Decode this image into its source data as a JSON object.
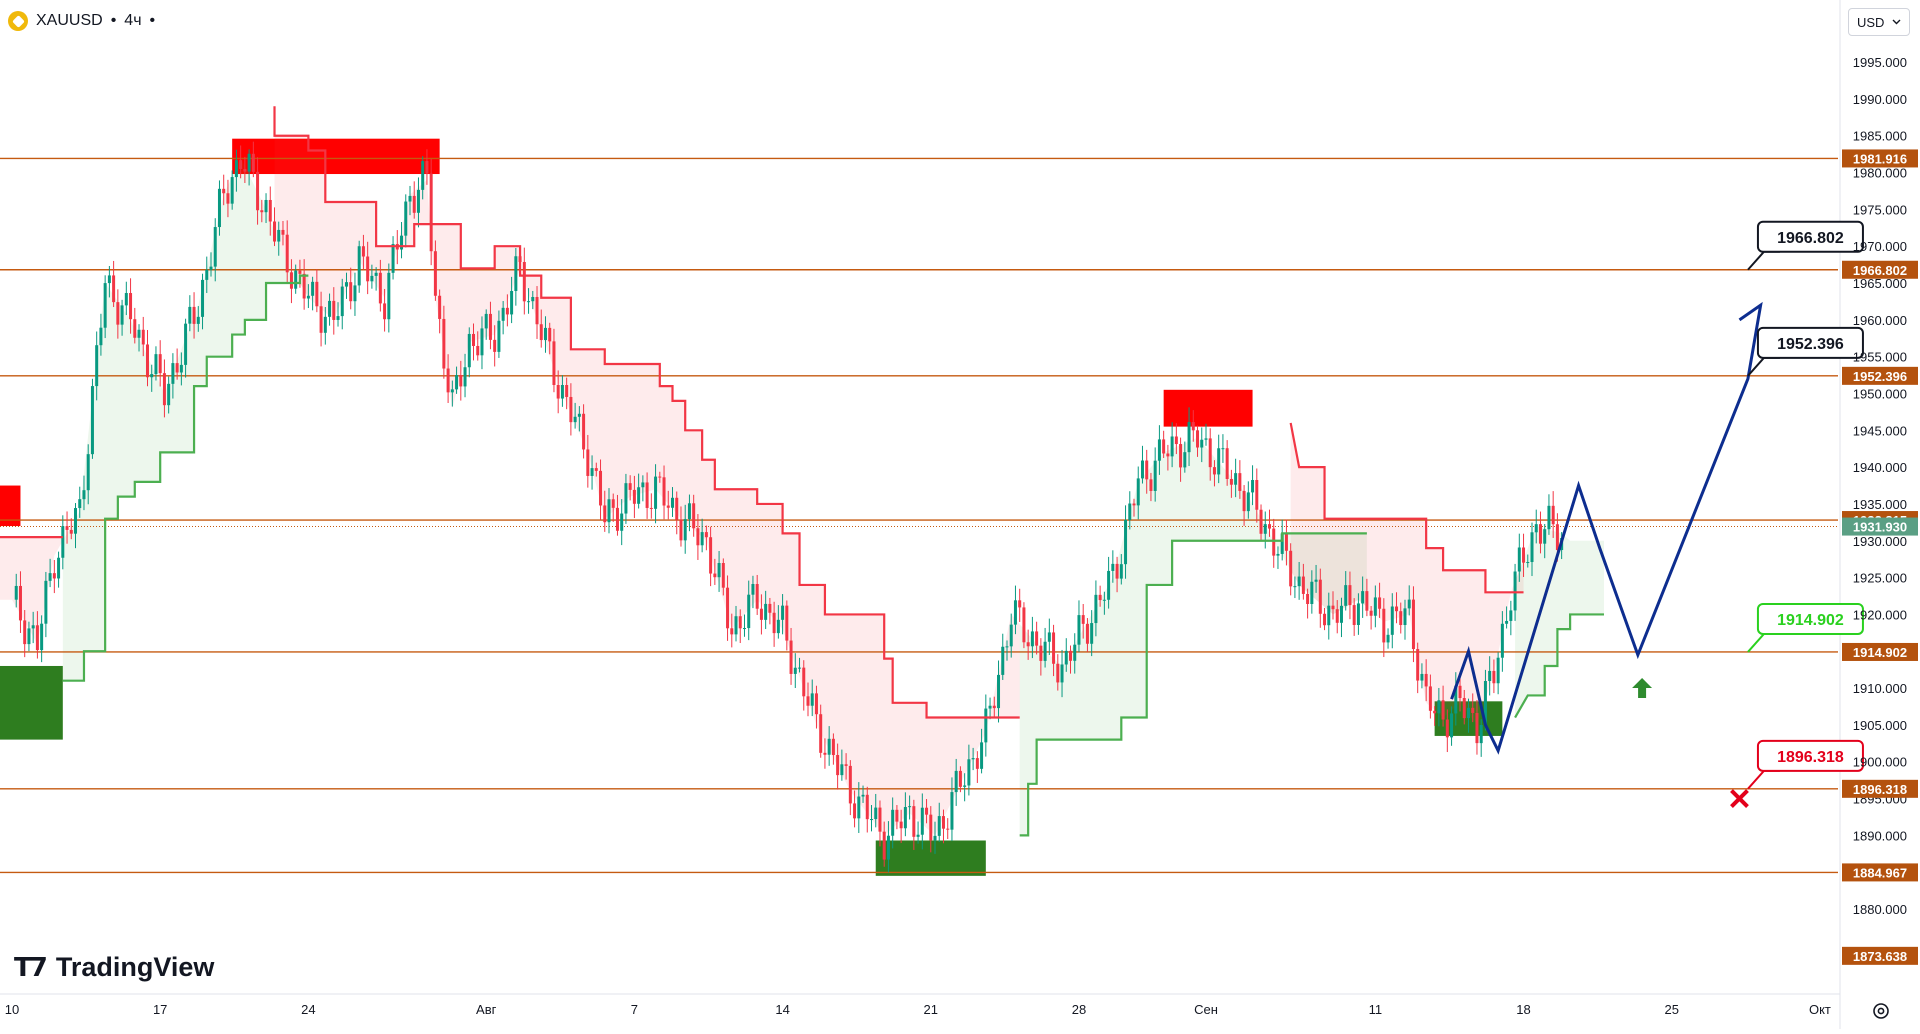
{
  "header": {
    "symbol": "XAUUSD",
    "interval": "4ч",
    "currency": "USD"
  },
  "brand": {
    "name": "TradingView"
  },
  "colors": {
    "bull": "#089981",
    "bear": "#f23645",
    "level": "#c55a11",
    "supertrend_up": "#4caf50",
    "supertrend_down": "#f23645",
    "projection": "#0d2d8f",
    "demand_zone": "#2e7d1f",
    "supply_zone": "#ff0000"
  },
  "icons": {
    "symbol": "gold-coin-icon",
    "settings": "gear-icon",
    "currency_toggle": "chevron-down-icon",
    "target": "arrow-up-icon",
    "stop": "x-mark-icon"
  },
  "chart_data": {
    "type": "candlestick",
    "symbol": "XAUUSD",
    "interval": "4ч",
    "ylim": [
      1869,
      1998
    ],
    "y_ticks": [
      1880,
      1885,
      1890,
      1895,
      1900,
      1905,
      1910,
      1915,
      1920,
      1925,
      1930,
      1935,
      1940,
      1945,
      1950,
      1955,
      1960,
      1965,
      1970,
      1975,
      1980,
      1985,
      1990,
      1995
    ],
    "y_tick_labels": [
      "1880.000",
      "1885.000",
      "1890.000",
      "1895.000",
      "1900.000",
      "1905.000",
      "1910.000",
      "1915.000",
      "1920.000",
      "1925.000",
      "1930.000",
      "1935.000",
      "1940.000",
      "1945.000",
      "1950.000",
      "1955.000",
      "1960.000",
      "1965.000",
      "1970.000",
      "1975.000",
      "1980.000",
      "1985.000",
      "1990.000",
      "1995.000"
    ],
    "x_labels": [
      {
        "label": "10",
        "t": 0
      },
      {
        "label": "17",
        "t": 35
      },
      {
        "label": "24",
        "t": 70
      },
      {
        "label": "Авг",
        "t": 112
      },
      {
        "label": "7",
        "t": 147
      },
      {
        "label": "14",
        "t": 182
      },
      {
        "label": "21",
        "t": 217
      },
      {
        "label": "28",
        "t": 252
      },
      {
        "label": "Сен",
        "t": 282
      },
      {
        "label": "11",
        "t": 322
      },
      {
        "label": "18",
        "t": 357
      },
      {
        "label": "25",
        "t": 392
      },
      {
        "label": "Окт",
        "t": 427
      }
    ],
    "price_path": [
      [
        0,
        1922
      ],
      [
        6,
        1916
      ],
      [
        10,
        1928
      ],
      [
        16,
        1934
      ],
      [
        22,
        1965
      ],
      [
        28,
        1960
      ],
      [
        36,
        1950
      ],
      [
        44,
        1962
      ],
      [
        50,
        1977
      ],
      [
        54,
        1982
      ],
      [
        60,
        1975
      ],
      [
        64,
        1969
      ],
      [
        70,
        1963
      ],
      [
        76,
        1960
      ],
      [
        82,
        1968
      ],
      [
        88,
        1963
      ],
      [
        94,
        1977
      ],
      [
        98,
        1979
      ],
      [
        100,
        1963
      ],
      [
        104,
        1948
      ],
      [
        108,
        1957
      ],
      [
        114,
        1958
      ],
      [
        120,
        1967
      ],
      [
        124,
        1960
      ],
      [
        130,
        1950
      ],
      [
        136,
        1942
      ],
      [
        140,
        1933
      ],
      [
        146,
        1936
      ],
      [
        152,
        1937
      ],
      [
        158,
        1933
      ],
      [
        164,
        1930
      ],
      [
        170,
        1918
      ],
      [
        176,
        1922
      ],
      [
        182,
        1918
      ],
      [
        190,
        1905
      ],
      [
        198,
        1896
      ],
      [
        206,
        1890
      ],
      [
        212,
        1893
      ],
      [
        218,
        1890
      ],
      [
        224,
        1897
      ],
      [
        230,
        1904
      ],
      [
        236,
        1920
      ],
      [
        242,
        1916
      ],
      [
        248,
        1913
      ],
      [
        254,
        1919
      ],
      [
        260,
        1925
      ],
      [
        266,
        1938
      ],
      [
        272,
        1942
      ],
      [
        280,
        1944
      ],
      [
        286,
        1940
      ],
      [
        292,
        1936
      ],
      [
        298,
        1930
      ],
      [
        304,
        1924
      ],
      [
        312,
        1920
      ],
      [
        318,
        1922
      ],
      [
        324,
        1919
      ],
      [
        330,
        1920
      ],
      [
        334,
        1908
      ],
      [
        338,
        1906
      ],
      [
        342,
        1908
      ],
      [
        346,
        1905
      ],
      [
        350,
        1912
      ],
      [
        354,
        1923
      ],
      [
        360,
        1932
      ],
      [
        366,
        1931
      ],
      [
        368,
        1930
      ]
    ],
    "levels": [
      {
        "label": "1981.916",
        "value": 1981.916,
        "color": "#c55a11"
      },
      {
        "label": "1966.802",
        "value": 1966.802,
        "color": "#c55a11"
      },
      {
        "label": "1952.396",
        "value": 1952.396,
        "color": "#c55a11"
      },
      {
        "label": "1932.815",
        "value": 1932.815,
        "color": "#c55a11"
      },
      {
        "label": "1914.902",
        "value": 1914.902,
        "color": "#c55a11"
      },
      {
        "label": "1896.318",
        "value": 1896.318,
        "color": "#c55a11"
      },
      {
        "label": "1884.967",
        "value": 1884.967,
        "color": "#c55a11"
      },
      {
        "label": "1873.638",
        "value": 1873.638,
        "color": "#c55a11"
      }
    ],
    "last_price": {
      "label": "1931.930",
      "value": 1931.93,
      "color": "#5a9f84"
    },
    "supertrend": [
      {
        "dir": "down",
        "pts": [
          [
            -4,
            1930.5
          ],
          [
            12,
            1930.5
          ]
        ]
      },
      {
        "dir": "up",
        "pts": [
          [
            12,
            1911
          ],
          [
            17,
            1911
          ],
          [
            17,
            1915
          ],
          [
            22,
            1915
          ],
          [
            22,
            1933
          ],
          [
            25,
            1933
          ],
          [
            25,
            1936
          ],
          [
            29,
            1936
          ],
          [
            29,
            1938
          ],
          [
            35,
            1938
          ],
          [
            35,
            1942
          ],
          [
            43,
            1942
          ],
          [
            43,
            1951
          ],
          [
            46,
            1951
          ],
          [
            46,
            1955
          ],
          [
            52,
            1955
          ],
          [
            52,
            1958
          ],
          [
            55,
            1958
          ],
          [
            55,
            1960
          ],
          [
            60,
            1960
          ],
          [
            60,
            1965
          ],
          [
            68,
            1965
          ],
          [
            68,
            1966
          ],
          [
            70,
            1966
          ]
        ]
      },
      {
        "dir": "down",
        "pts": [
          [
            62,
            1989
          ],
          [
            62,
            1985
          ],
          [
            70,
            1985
          ],
          [
            70,
            1983
          ],
          [
            74,
            1983
          ],
          [
            74,
            1976
          ],
          [
            86,
            1976
          ],
          [
            86,
            1970
          ],
          [
            95,
            1970
          ],
          [
            95,
            1973
          ],
          [
            106,
            1973
          ],
          [
            106,
            1967
          ],
          [
            114,
            1967
          ],
          [
            114,
            1970
          ],
          [
            120,
            1970
          ],
          [
            120,
            1966
          ],
          [
            125,
            1966
          ],
          [
            125,
            1963
          ],
          [
            132,
            1963
          ],
          [
            132,
            1956
          ],
          [
            140,
            1956
          ],
          [
            140,
            1954
          ],
          [
            153,
            1954
          ],
          [
            153,
            1951
          ],
          [
            156,
            1951
          ],
          [
            156,
            1949
          ],
          [
            159,
            1949
          ],
          [
            159,
            1945
          ],
          [
            163,
            1945
          ],
          [
            163,
            1941
          ],
          [
            166,
            1941
          ],
          [
            166,
            1937
          ],
          [
            176,
            1937
          ],
          [
            176,
            1935
          ],
          [
            182,
            1935
          ],
          [
            182,
            1931
          ],
          [
            186,
            1931
          ],
          [
            186,
            1924
          ],
          [
            192,
            1924
          ],
          [
            192,
            1920
          ],
          [
            206,
            1920
          ],
          [
            206,
            1914
          ],
          [
            208,
            1914
          ],
          [
            208,
            1908
          ],
          [
            216,
            1908
          ],
          [
            216,
            1906
          ],
          [
            238,
            1906
          ]
        ]
      },
      {
        "dir": "up",
        "pts": [
          [
            238,
            1890
          ],
          [
            240,
            1890
          ],
          [
            240,
            1897
          ],
          [
            242,
            1897
          ],
          [
            242,
            1903
          ],
          [
            262,
            1903
          ],
          [
            262,
            1906
          ],
          [
            268,
            1906
          ],
          [
            268,
            1924
          ],
          [
            274,
            1924
          ],
          [
            274,
            1930
          ],
          [
            300,
            1930
          ],
          [
            300,
            1931
          ],
          [
            320,
            1931
          ]
        ]
      },
      {
        "dir": "down",
        "pts": [
          [
            302,
            1946
          ],
          [
            304,
            1940
          ],
          [
            310,
            1940
          ],
          [
            310,
            1933
          ],
          [
            334,
            1933
          ],
          [
            334,
            1929
          ],
          [
            338,
            1929
          ],
          [
            338,
            1926
          ],
          [
            348,
            1926
          ],
          [
            348,
            1923
          ],
          [
            357,
            1923
          ]
        ]
      },
      {
        "dir": "up",
        "pts": [
          [
            355,
            1906
          ],
          [
            358,
            1909
          ],
          [
            362,
            1909
          ],
          [
            362,
            1913
          ],
          [
            365,
            1913
          ],
          [
            365,
            1918
          ],
          [
            368,
            1918
          ],
          [
            368,
            1920
          ],
          [
            376,
            1920
          ]
        ]
      }
    ],
    "zones": [
      {
        "type": "supply",
        "t1": 52,
        "t2": 101,
        "y1": 1979.8,
        "y2": 1984.6
      },
      {
        "type": "supply",
        "t1": -4,
        "t2": 2,
        "y1": 1932,
        "y2": 1937.5
      },
      {
        "type": "demand",
        "t1": -4,
        "t2": 12,
        "y1": 1903,
        "y2": 1913
      },
      {
        "type": "demand",
        "t1": 204,
        "t2": 230,
        "y1": 1884.5,
        "y2": 1889.3
      },
      {
        "type": "supply",
        "t1": 272,
        "t2": 293,
        "y1": 1945.5,
        "y2": 1950.5
      },
      {
        "type": "demand",
        "t1": 336,
        "t2": 352,
        "y1": 1903.5,
        "y2": 1908.2
      }
    ],
    "projection": [
      {
        "pts": [
          [
            340,
            1908.5
          ],
          [
            344,
            1915
          ],
          [
            348,
            1905
          ],
          [
            351,
            1901.5
          ],
          [
            370,
            1937.5
          ],
          [
            375,
            1929
          ],
          [
            384,
            1914.5
          ],
          [
            410,
            1952
          ],
          [
            413,
            1962
          ],
          [
            408,
            1960
          ]
        ]
      }
    ],
    "callouts": [
      {
        "label": "1966.802",
        "value": 1966.802,
        "anchor_t": 410,
        "tone": "black"
      },
      {
        "label": "1952.396",
        "value": 1952.396,
        "anchor_t": 410,
        "tone": "black"
      },
      {
        "label": "1914.902",
        "value": 1914.902,
        "anchor_t": 410,
        "tone": "green"
      },
      {
        "label": "1896.318",
        "value": 1896.318,
        "anchor_t": 410,
        "tone": "red"
      }
    ],
    "markers": [
      {
        "type": "target_arrow",
        "t": 385,
        "value": 1910
      },
      {
        "type": "stop_cross",
        "t": 408,
        "value": 1895
      }
    ]
  }
}
